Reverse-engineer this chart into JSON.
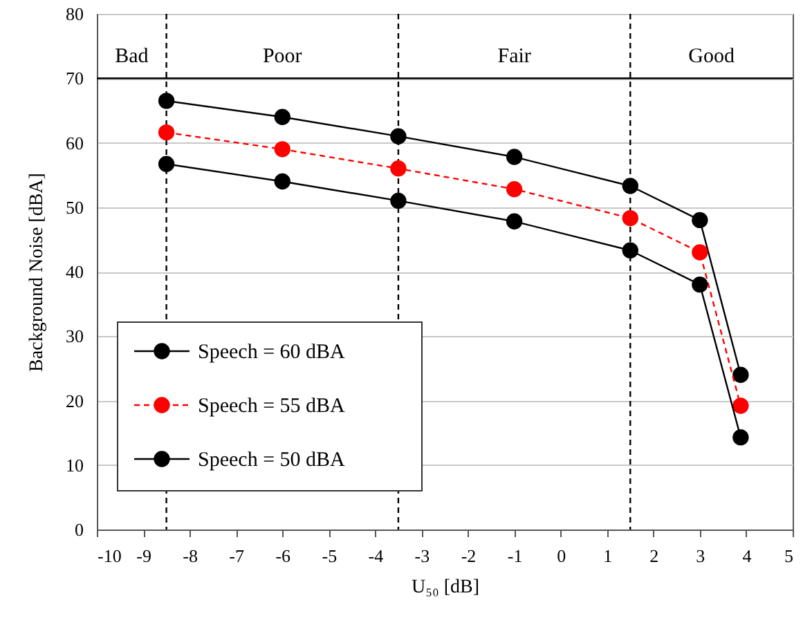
{
  "chart_data": {
    "type": "line",
    "xlabel": "U₅₀ [dB]",
    "ylabel": "Background Noise [dBA]",
    "x": [
      -8.5,
      -6,
      -3.5,
      -1,
      1.5,
      3,
      3.88
    ],
    "series": [
      {
        "name": "Speech = 60 dBA",
        "color": "#000000",
        "line_style": "solid",
        "values": [
          66.5,
          64,
          61,
          57.8,
          53.3,
          48,
          24
        ]
      },
      {
        "name": "Speech = 55 dBA",
        "color": "#ff0000",
        "line_style": "dashed",
        "values": [
          61.6,
          59,
          56,
          52.8,
          48.3,
          43,
          19.2
        ]
      },
      {
        "name": "Speech = 50 dBA",
        "color": "#000000",
        "line_style": "solid",
        "values": [
          56.7,
          54,
          51,
          47.8,
          43.3,
          38,
          14.3
        ]
      }
    ],
    "xlim": [
      -10,
      5
    ],
    "xticks": [
      -10,
      -9,
      -8,
      -7,
      -6,
      -5,
      -4,
      -3,
      -2,
      -1,
      0,
      1,
      2,
      3,
      4,
      5
    ],
    "ylim": [
      0,
      80
    ],
    "yticks": [
      0,
      10,
      20,
      30,
      40,
      50,
      60,
      70,
      80
    ],
    "ref_lines": [
      {
        "axis": "x",
        "value": -8.5,
        "color": "#000000",
        "line_style": "dashed"
      },
      {
        "axis": "x",
        "value": -3.5,
        "color": "#000000",
        "line_style": "dashed"
      },
      {
        "axis": "x",
        "value": 1.5,
        "color": "#000000",
        "line_style": "dashed"
      },
      {
        "axis": "y",
        "value": 70,
        "color": "#000000",
        "line_style": "solid"
      }
    ],
    "annotations": [
      "Bad",
      "Poor",
      "Fair",
      "Good"
    ],
    "grid": "y",
    "legend": "bottom left",
    "marker": "circle"
  }
}
